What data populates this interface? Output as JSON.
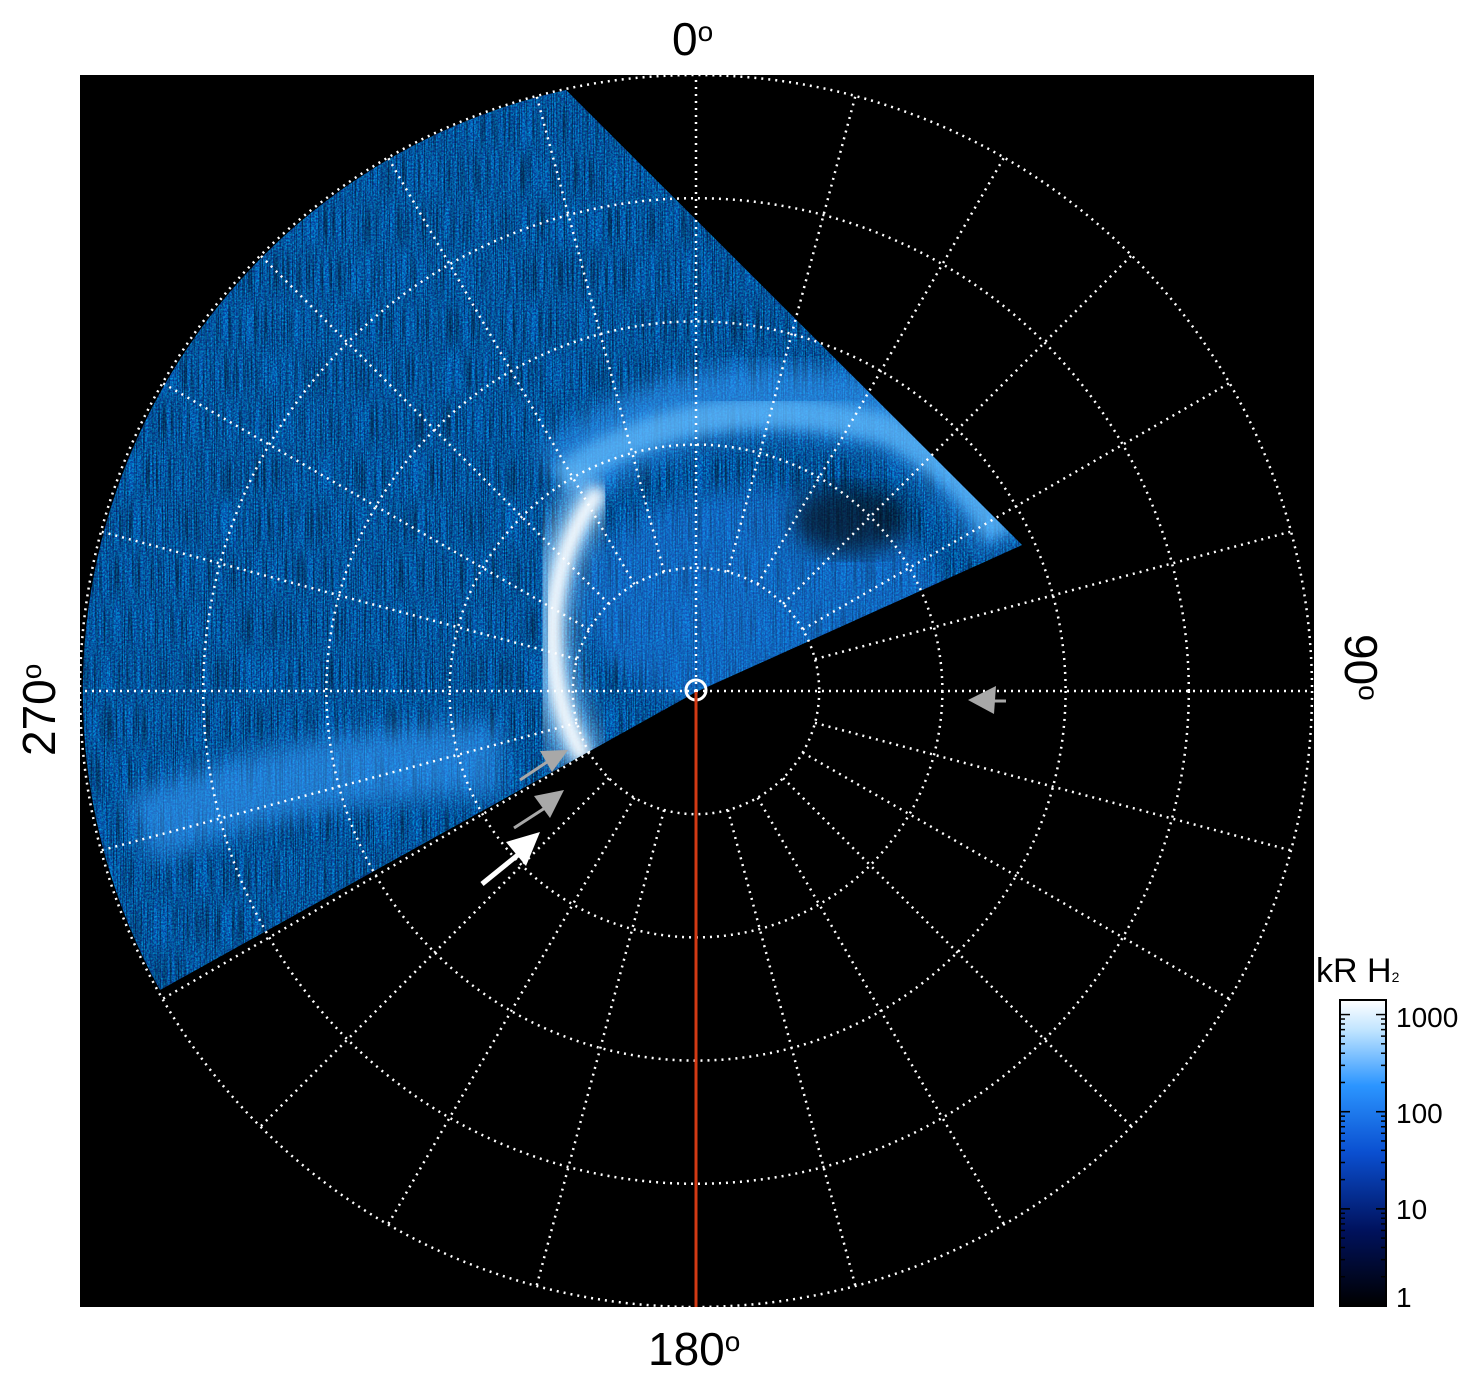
{
  "axis_labels": {
    "top": "0",
    "right": "90",
    "bottom": "180",
    "left": "270",
    "degree_symbol": "o"
  },
  "colorbar": {
    "title": "kR H",
    "title_subscript": "2",
    "ticks": [
      "1000",
      "100",
      "10",
      "1"
    ],
    "scale": "log",
    "colors": [
      "#000000",
      "#00125e",
      "#0a4fd0",
      "#2b95ff",
      "#bfe4ff",
      "#ffffff"
    ]
  },
  "colors": {
    "background": "#000000",
    "grid": "#ffffff",
    "meridian_line": "#d23a14",
    "arrow_gray": "#a8a8a8",
    "arrow_white": "#ffffff"
  },
  "icons": [
    "arrow-icon"
  ]
}
